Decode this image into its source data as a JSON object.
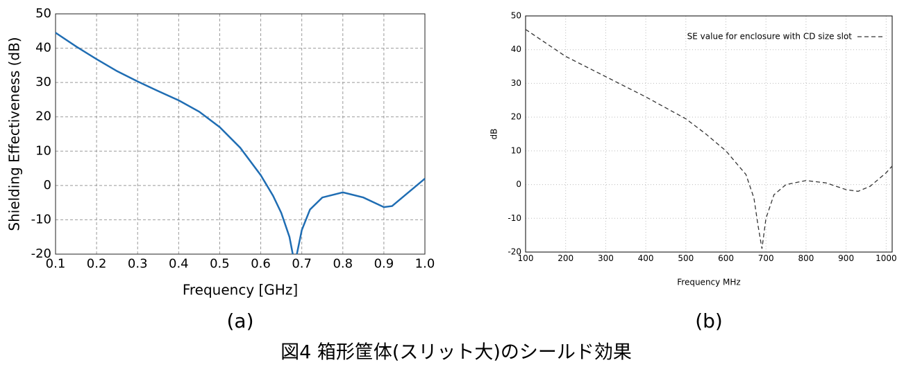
{
  "chart_data": [
    {
      "type": "line",
      "panel_label": "(a)",
      "x_label": "Frequency [GHz]",
      "y_label": "Shielding Effectiveness (dB)",
      "xlim": [
        0.1,
        1
      ],
      "ylim": [
        -20,
        50
      ],
      "xticks": [
        0.1,
        0.2,
        0.3,
        0.4,
        0.5,
        0.6,
        0.7,
        0.8,
        0.9,
        {
          "value": 1,
          "label": "1.0"
        }
      ],
      "yticks": [
        -20,
        -10,
        0,
        10,
        20,
        30,
        40,
        50
      ],
      "grid": true,
      "x": [
        0.1,
        0.15,
        0.2,
        0.25,
        0.3,
        0.35,
        0.4,
        0.45,
        0.5,
        0.55,
        0.6,
        0.63,
        0.65,
        0.67,
        0.678,
        0.683,
        0.688,
        0.7,
        0.72,
        0.75,
        0.8,
        0.85,
        0.9,
        0.92,
        0.95,
        1
      ],
      "series": [
        {
          "color": "#1f6db3",
          "line_style": "solid",
          "values": [
            44.5,
            40.5,
            36.8,
            33.3,
            30.3,
            27.5,
            24.8,
            21.5,
            17,
            11,
            3,
            -3,
            -8,
            -15,
            -20,
            null,
            -20,
            -13,
            -7,
            -3.5,
            -2,
            -3.5,
            -6.3,
            -6,
            -3,
            2
          ]
        }
      ]
    },
    {
      "type": "line",
      "panel_label": "(b)",
      "x_label": "Frequency MHz",
      "y_label": "dB",
      "xlim": [
        100,
        1015
      ],
      "ylim": [
        -20,
        50
      ],
      "xticks": [
        100,
        200,
        300,
        400,
        500,
        600,
        700,
        800,
        900,
        1000
      ],
      "yticks": [
        -20,
        -10,
        0,
        10,
        20,
        30,
        40,
        50
      ],
      "grid": true,
      "legend": "top-right",
      "x": [
        100,
        150,
        200,
        300,
        400,
        500,
        550,
        600,
        650,
        670,
        680,
        690,
        700,
        720,
        750,
        800,
        850,
        900,
        930,
        960,
        1000,
        1015
      ],
      "series": [
        {
          "name": "SE value for enclosure with CD size slot",
          "color": "#333333",
          "line_style": "dashed",
          "values": [
            46,
            42,
            38,
            32,
            26,
            19.5,
            15,
            10,
            3,
            -4,
            -12,
            -19,
            -10,
            -3,
            0,
            1.2,
            0.5,
            -1.5,
            -2,
            -0.5,
            3.5,
            5.5
          ]
        }
      ]
    }
  ],
  "caption": "図4 箱形筐体(スリット大)のシールド効果"
}
